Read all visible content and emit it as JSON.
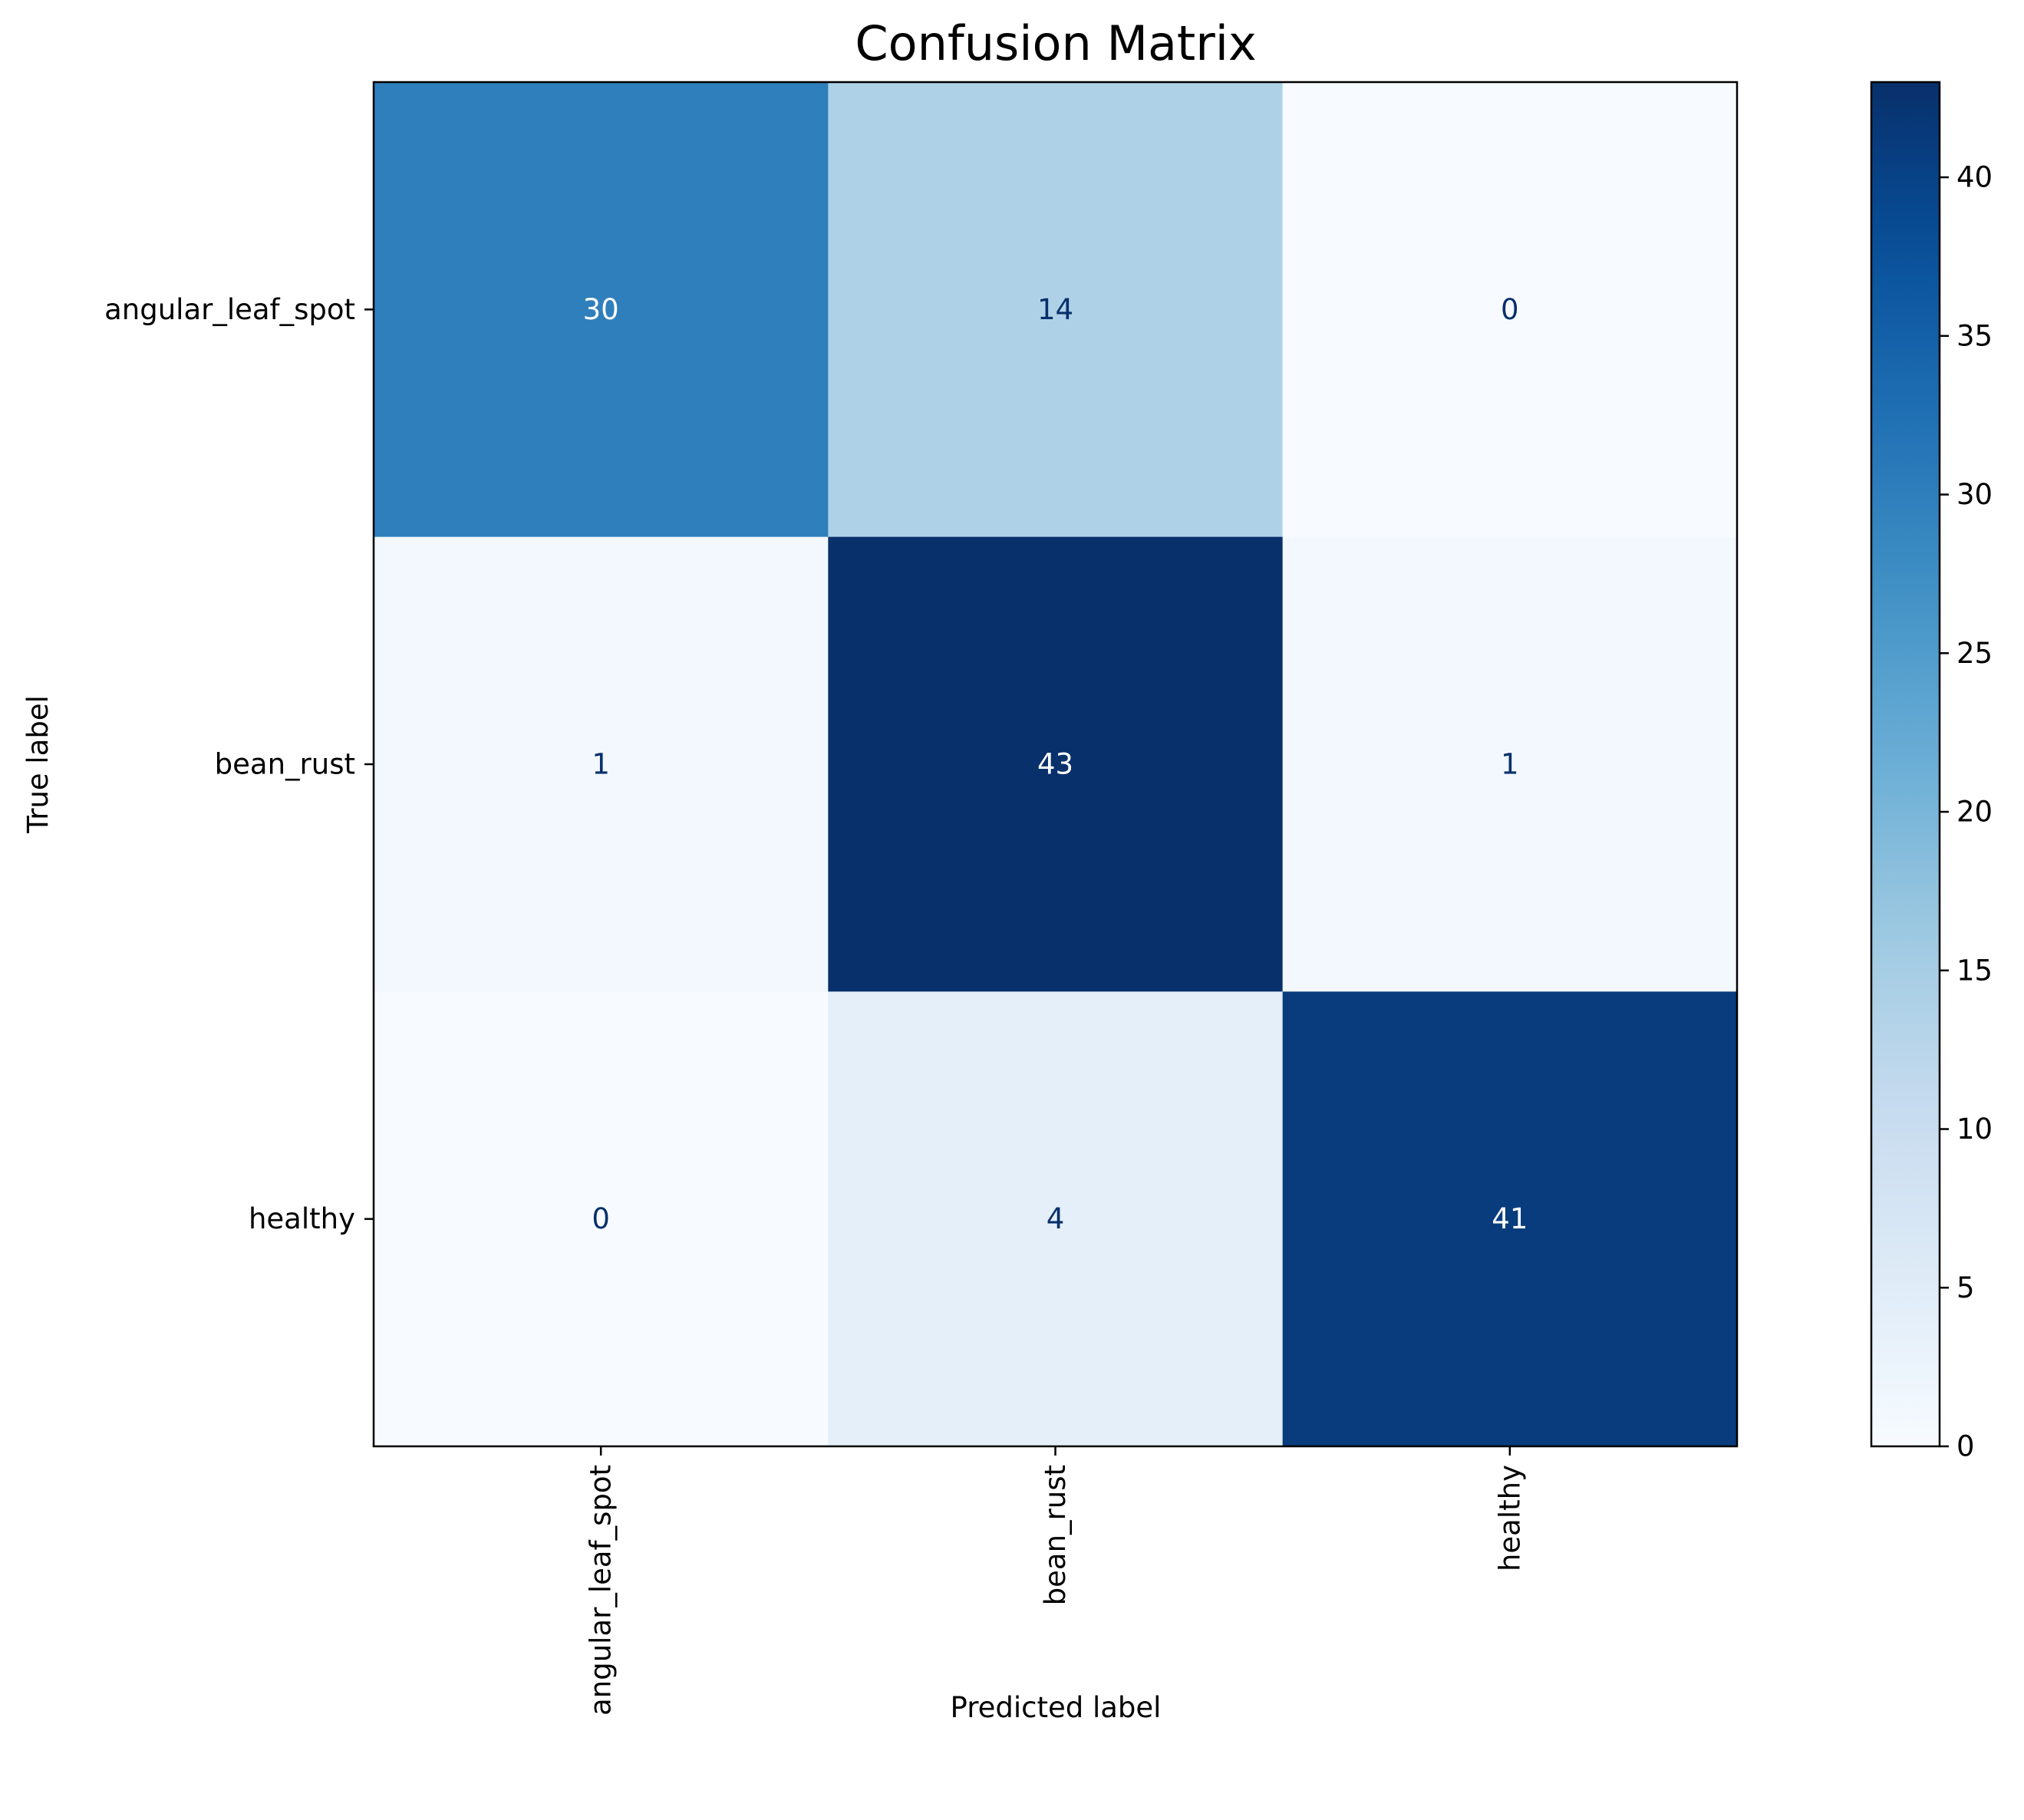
{
  "chart_data": {
    "type": "heatmap",
    "title": "Confusion Matrix",
    "xlabel": "Predicted label",
    "ylabel": "True label",
    "x_categories": [
      "angular_leaf_spot",
      "bean_rust",
      "healthy"
    ],
    "y_categories": [
      "angular_leaf_spot",
      "bean_rust",
      "healthy"
    ],
    "values": [
      [
        30,
        14,
        0
      ],
      [
        1,
        43,
        1
      ],
      [
        0,
        4,
        41
      ]
    ],
    "colormap": "Blues",
    "colorbar": {
      "range": [
        0,
        43
      ],
      "ticks": [
        0,
        5,
        10,
        15,
        20,
        25,
        30,
        35,
        40
      ]
    },
    "grid": false
  }
}
